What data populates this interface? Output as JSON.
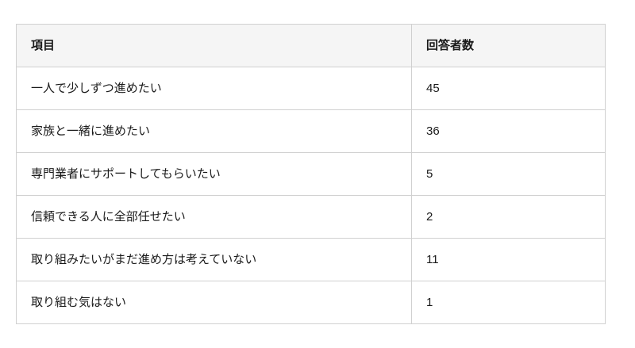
{
  "table": {
    "headers": [
      "項目",
      "回答者数"
    ],
    "rows": [
      {
        "item": "一人で少しずつ進めたい",
        "count": "45"
      },
      {
        "item": "家族と一緒に進めたい",
        "count": "36"
      },
      {
        "item": "専門業者にサポートしてもらいたい",
        "count": "5"
      },
      {
        "item": "信頼できる人に全部任せたい",
        "count": "2"
      },
      {
        "item": "取り組みたいがまだ進め方は考えていない",
        "count": "11"
      },
      {
        "item": "取り組む気はない",
        "count": "1"
      }
    ]
  },
  "chart_data": {
    "type": "table",
    "columns": [
      "項目",
      "回答者数"
    ],
    "rows": [
      [
        "一人で少しずつ進めたい",
        45
      ],
      [
        "家族と一緒に進めたい",
        36
      ],
      [
        "専門業者にサポートしてもらいたい",
        5
      ],
      [
        "信頼できる人に全部任せたい",
        2
      ],
      [
        "取り組みたいがまだ進め方は考えていない",
        11
      ],
      [
        "取り組む気はない",
        1
      ]
    ]
  },
  "colors": {
    "header_background": "#f5f5f5",
    "row_background": "#ffffff",
    "border": "#d0d0d0",
    "text": "#1a1a1a"
  }
}
